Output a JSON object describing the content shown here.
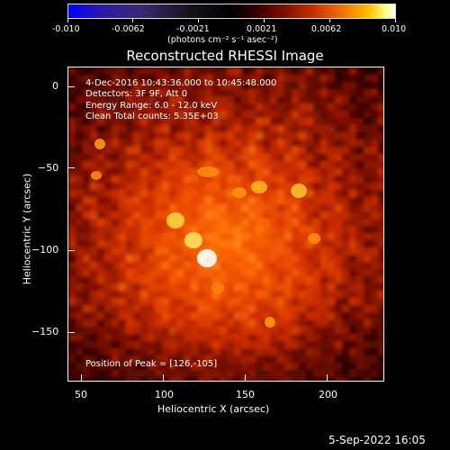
{
  "colorbar": {
    "ticks": [
      "-0.010",
      "-0.0062",
      "-0.0021",
      "0.0021",
      "0.0062",
      "0.010"
    ],
    "units": "(photons cm⁻² s⁻¹ asec⁻²)"
  },
  "plot": {
    "title": "Reconstructed RHESSI Image",
    "xlabel": "Heliocentric X (arcsec)",
    "ylabel": "Heliocentric Y (arcsec)",
    "xticks": [
      "50",
      "100",
      "150",
      "200"
    ],
    "yticks": [
      "0",
      "−50",
      "−100",
      "−150"
    ]
  },
  "annotations": {
    "time_range": "4-Dec-2016 10:43:36.000 to 10:45:48.000",
    "detectors": "Detectors: 3F 9F, Att 0",
    "energy": "Energy Range: 6.0 - 12.0 keV",
    "clean": "Clean     Total counts: 5.35E+03",
    "peak": "Position of Peak = [126,-105]"
  },
  "footer": {
    "timestamp": "5-Sep-2022 16:05"
  },
  "colors": {
    "background": "#000000",
    "map_base": "#3a0300",
    "map_mid": "#c83000",
    "map_hot": "#ffd040",
    "map_peak": "#ffffff"
  }
}
